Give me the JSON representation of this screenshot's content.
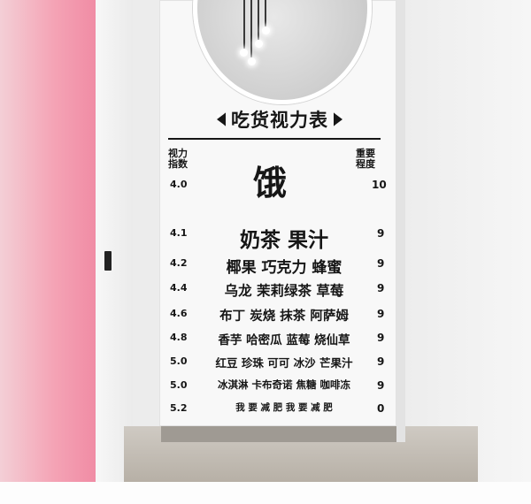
{
  "title": "吃货视力表",
  "header_left": [
    "视力",
    "指数"
  ],
  "header_right": [
    "重要",
    "程度"
  ],
  "rows": [
    {
      "index": "4.0",
      "words": "饿",
      "importance": "10"
    },
    {
      "index": "4.1",
      "words": "奶茶 果汁",
      "importance": "9"
    },
    {
      "index": "4.2",
      "words": "椰果 巧克力 蜂蜜",
      "importance": "9"
    },
    {
      "index": "4.4",
      "words": "乌龙 茉莉绿茶 草莓",
      "importance": "9"
    },
    {
      "index": "4.6",
      "words": "布丁 炭烧 抹茶 阿萨姆",
      "importance": "9"
    },
    {
      "index": "4.8",
      "words": "香芋 哈密瓜 蓝莓 烧仙草",
      "importance": "9"
    },
    {
      "index": "5.0",
      "words": "红豆 珍珠 可可 冰沙 芒果汁",
      "importance": "9"
    },
    {
      "index": "5.0",
      "words": "冰淇淋 卡布奇诺 焦糖 咖啡冻",
      "importance": "9"
    },
    {
      "index": "5.2",
      "words": "我 要 减 肥 我 要 减 肥",
      "importance": "0"
    }
  ],
  "colors": {
    "ink": "#161616",
    "pink_wall": "#f4a3b5",
    "wall": "#f4f4f2"
  }
}
